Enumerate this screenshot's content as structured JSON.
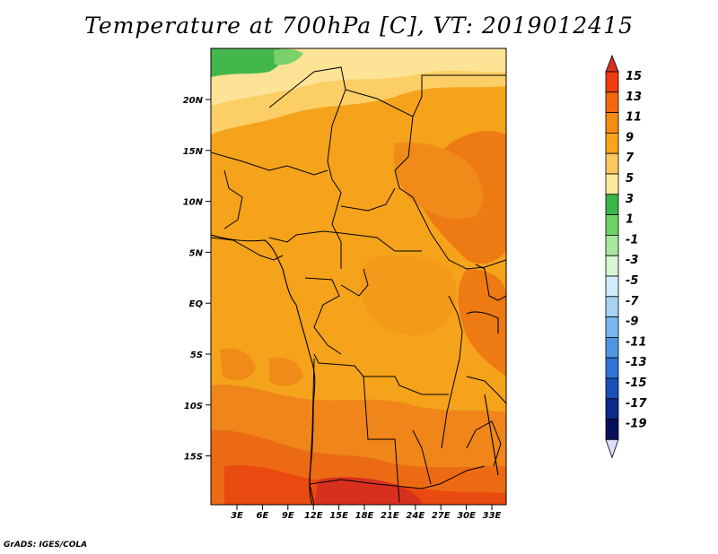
{
  "title": "Temperature at 700hPa [C], VT: 2019012415",
  "credit": "GrADS: IGES/COLA",
  "lat_labels": [
    "20N",
    "15N",
    "10N",
    "5N",
    "EQ",
    "5S",
    "10S",
    "15S"
  ],
  "lon_labels": [
    "3E",
    "6E",
    "9E",
    "12E",
    "15E",
    "18E",
    "21E",
    "24E",
    "27E",
    "30E",
    "33E"
  ],
  "colorbar": {
    "labels": [
      "15",
      "13",
      "11",
      "9",
      "7",
      "5",
      "3",
      "1",
      "-1",
      "-3",
      "-5",
      "-7",
      "-9",
      "-11",
      "-13",
      "-15",
      "-17",
      "-19"
    ],
    "colors": [
      "#d7301f",
      "#ef3b10",
      "#f46710",
      "#f68c12",
      "#f8a51a",
      "#fbc860",
      "#fde99a",
      "#3ab54a",
      "#6fd36a",
      "#a8e89c",
      "#d8f5d4",
      "#d2ecfb",
      "#a6d3f4",
      "#7ab7ec",
      "#4f95e2",
      "#2f74d6",
      "#1a4fb8",
      "#0c2a88",
      "#06105a",
      "#dcdff6"
    ]
  },
  "field_colors": {
    "warm_core": "#f5a11a",
    "orange_mid": "#f08a18",
    "orange_deep": "#eb6c12",
    "red": "#e0390e",
    "light": "#fbd873",
    "pale": "#fde9a0",
    "green": "#3cb648"
  }
}
